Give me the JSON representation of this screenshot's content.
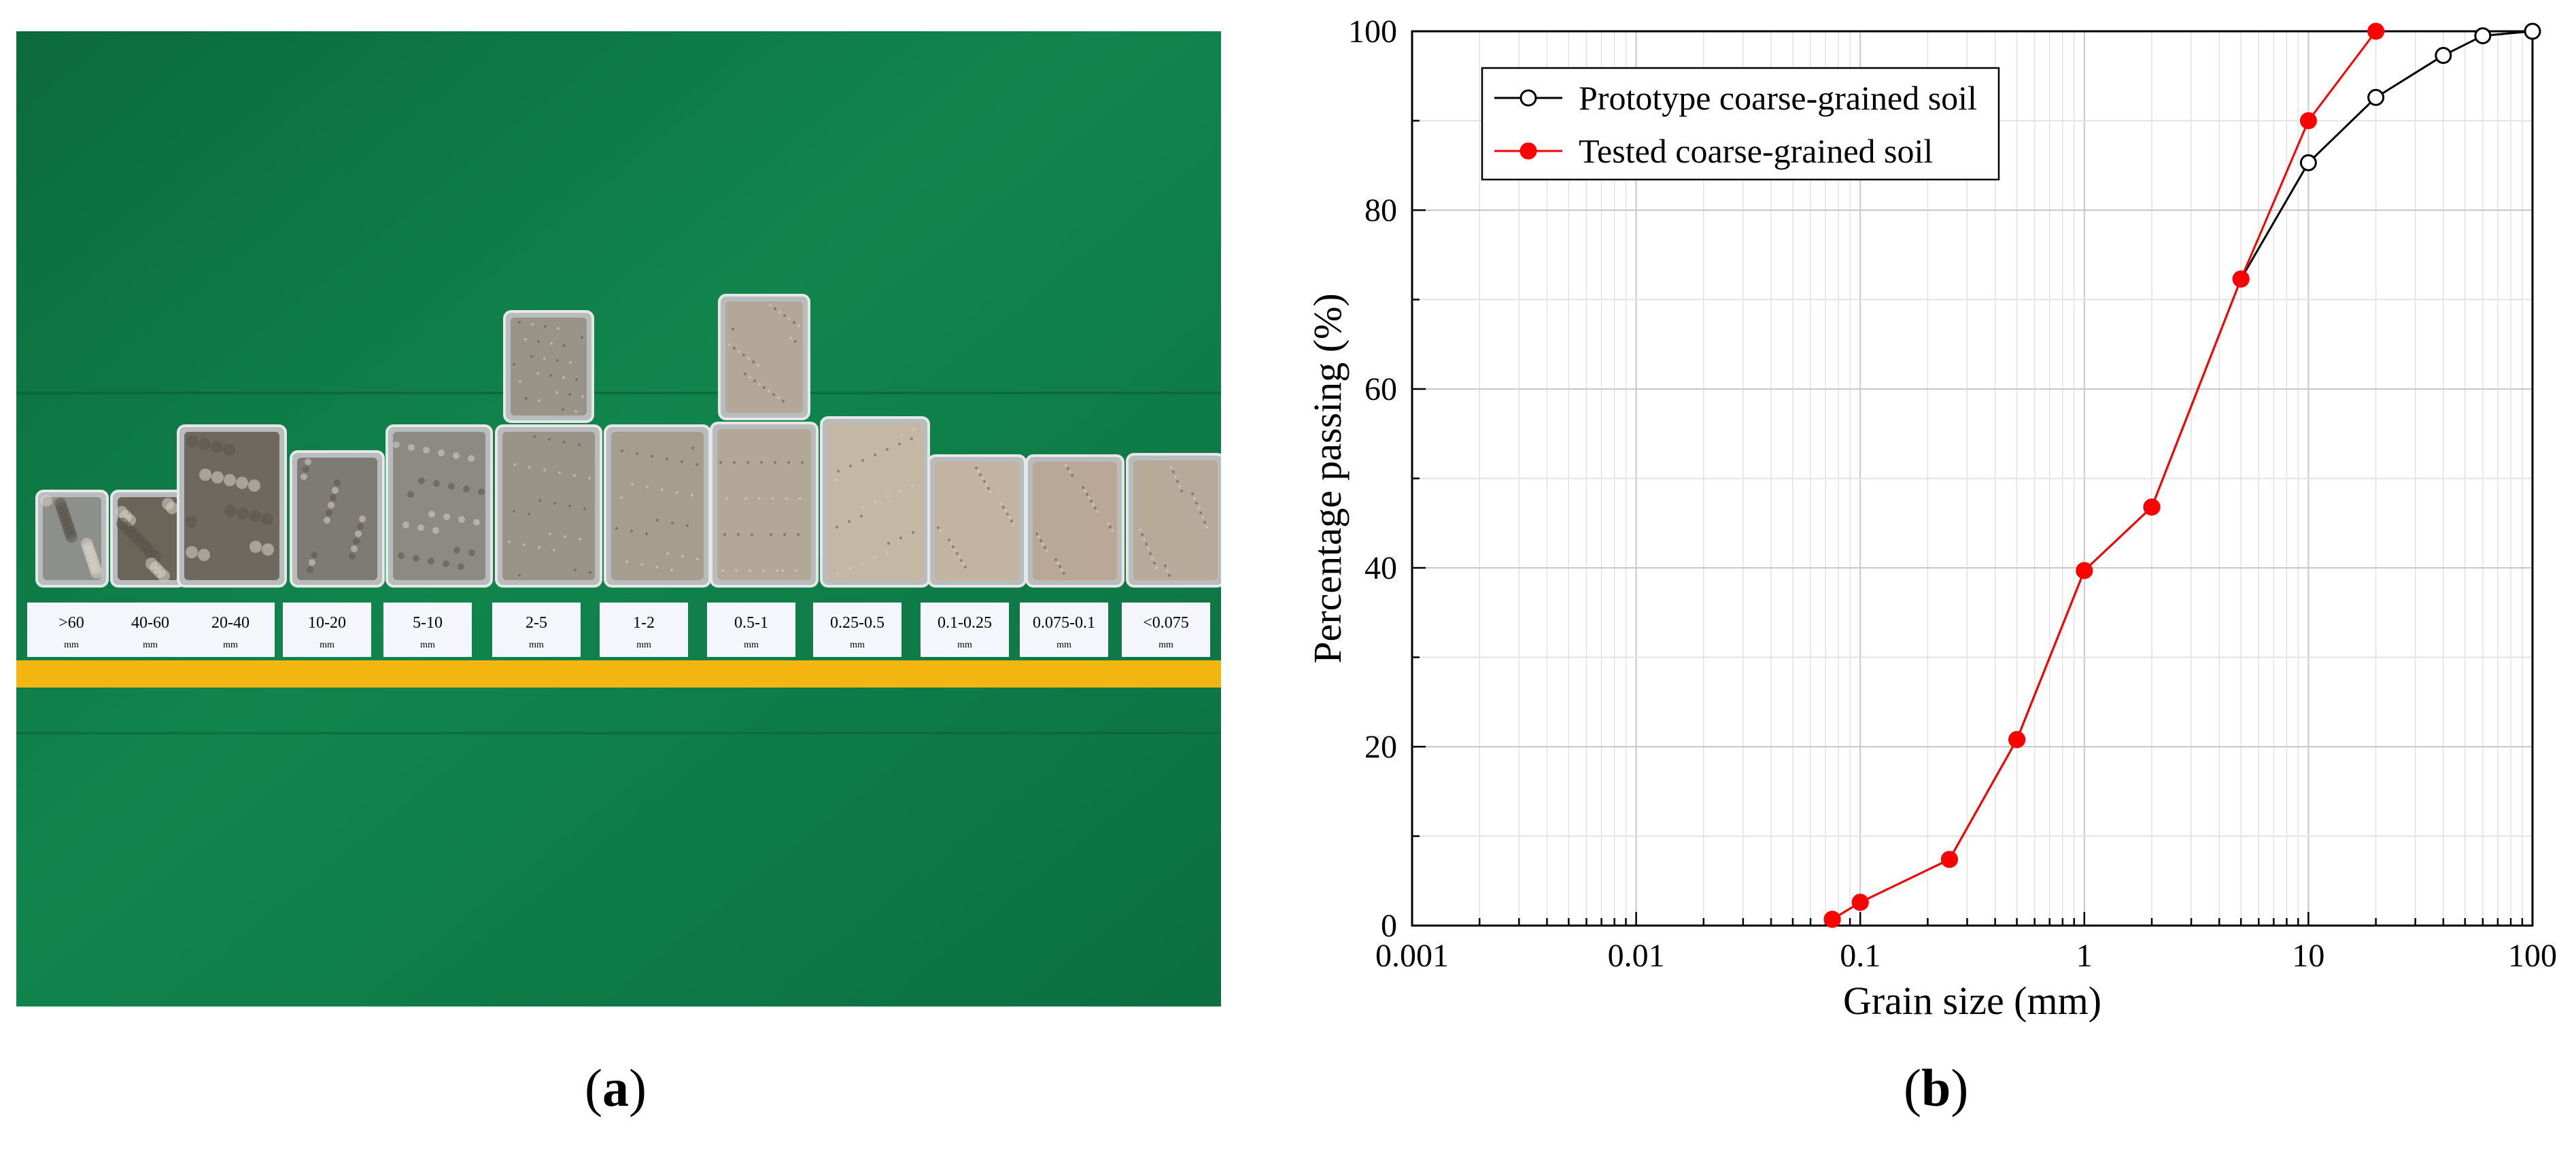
{
  "panel_a": {
    "caption": "a",
    "labels": [
      {
        "range": ">60",
        "unit": "mm"
      },
      {
        "range": "40-60",
        "unit": "mm"
      },
      {
        "range": "20-40",
        "unit": "mm"
      },
      {
        "range": "10-20",
        "unit": "mm"
      },
      {
        "range": "5-10",
        "unit": "mm"
      },
      {
        "range": "2-5",
        "unit": "mm"
      },
      {
        "range": "1-2",
        "unit": "mm"
      },
      {
        "range": "0.5-1",
        "unit": "mm"
      },
      {
        "range": "0.25-0.5",
        "unit": "mm"
      },
      {
        "range": "0.1-0.25",
        "unit": "mm"
      },
      {
        "range": "0.075-0.1",
        "unit": "mm"
      },
      {
        "range": "<0.075",
        "unit": "mm"
      }
    ],
    "colors": {
      "floor": "#0e7a46",
      "stripe": "#f3b50f",
      "tray": "#b9bcbd"
    },
    "tray_fills": [
      "#8d8f8a",
      "#6b6459",
      "#6e685f",
      "#7e7b74",
      "#8d8a83",
      "#9a9388",
      "#a79d8e",
      "#b3a797",
      "#c4b7a4",
      "#c3b3a1",
      "#b9a896",
      "#b8aa99"
    ]
  },
  "panel_b": {
    "caption": "b"
  },
  "chart_data": {
    "type": "line",
    "title": "",
    "xlabel": "Grain size (mm)",
    "ylabel": "Percentage passing (%)",
    "xscale": "log",
    "xlim": [
      0.001,
      100
    ],
    "ylim": [
      0,
      100
    ],
    "x_ticks": [
      "0.001",
      "0.01",
      "0.1",
      "1",
      "10",
      "100"
    ],
    "y_ticks": [
      "0",
      "20",
      "40",
      "60",
      "80",
      "100"
    ],
    "grid": true,
    "legend_position": "top-left",
    "series": [
      {
        "name": "Prototype coarse-grained soil",
        "color": "#000000",
        "marker": "open-circle",
        "x": [
          0.075,
          0.1,
          0.25,
          0.5,
          1,
          2,
          5,
          10,
          20,
          40,
          60,
          100
        ],
        "y": [
          0.7,
          2.6,
          7.4,
          20.8,
          39.7,
          46.8,
          72.3,
          85.3,
          92.6,
          97.3,
          99.5,
          100
        ]
      },
      {
        "name": "Tested coarse-grained soil",
        "color": "#ff0000",
        "marker": "filled-circle",
        "x": [
          0.075,
          0.1,
          0.25,
          0.5,
          1,
          2,
          5,
          10,
          20
        ],
        "y": [
          0.7,
          2.6,
          7.4,
          20.8,
          39.7,
          46.8,
          72.3,
          90.0,
          100
        ]
      }
    ]
  }
}
